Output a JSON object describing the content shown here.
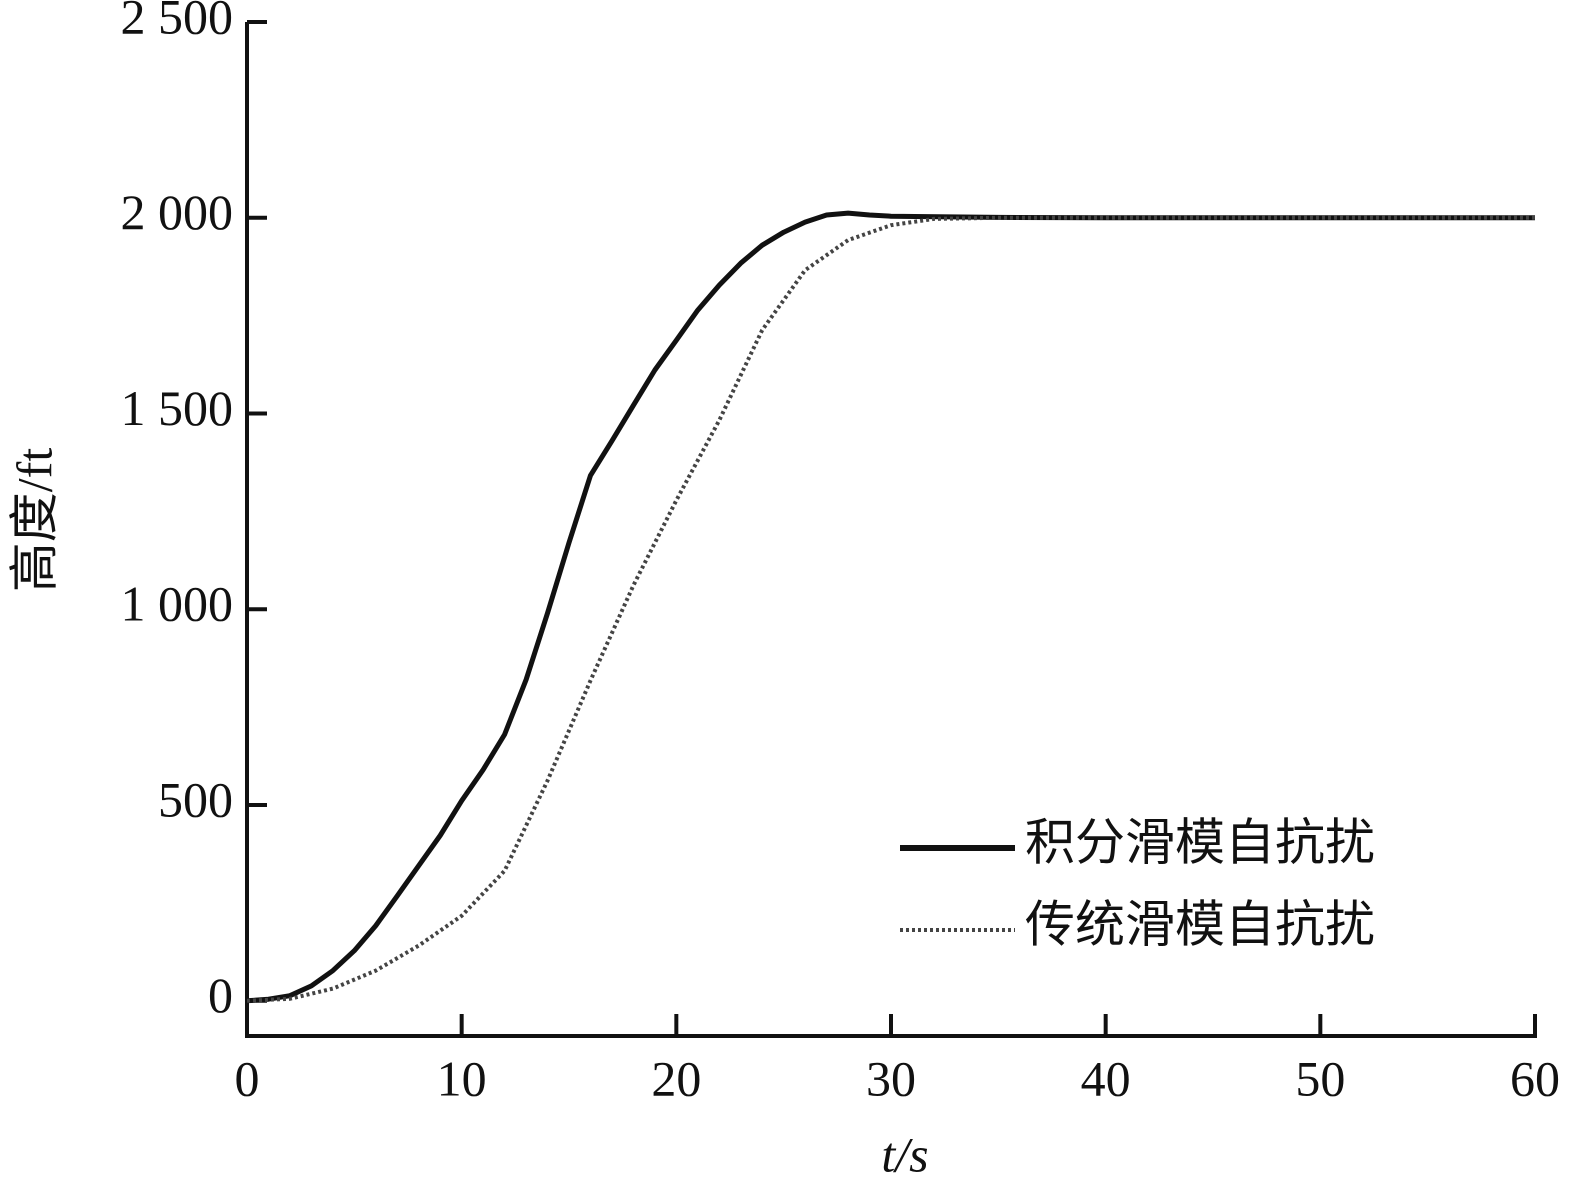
{
  "chart_data": {
    "type": "line",
    "xlabel": "t/s",
    "ylabel": "高度/ft",
    "xlim": [
      0,
      60
    ],
    "xticks": [
      0,
      10,
      20,
      30,
      40,
      50,
      60
    ],
    "ylim": [
      -90,
      2500
    ],
    "yticks": [
      0,
      500,
      {
        "value": 1000,
        "label": "1 000"
      },
      {
        "value": 1500,
        "label": "1 500"
      },
      {
        "value": 2000,
        "label": "2 000"
      },
      {
        "value": 2500,
        "label": "2 500"
      }
    ],
    "legend": "lower right",
    "series": [
      {
        "name": "积分滑模自抗扰",
        "color": "#111111",
        "style": "solid",
        "x": [
          0,
          1,
          2,
          3,
          4,
          5,
          6,
          7,
          8,
          9,
          10,
          11,
          12,
          13,
          14,
          15,
          16,
          17,
          18,
          19,
          20,
          21,
          22,
          23,
          24,
          25,
          26,
          27,
          28,
          29,
          30,
          35,
          40,
          50,
          60
        ],
        "values": [
          0,
          4,
          13,
          38,
          77,
          128,
          192,
          268,
          345,
          422,
          511,
          590,
          680,
          820,
          990,
          1170,
          1342,
          1430,
          1521,
          1611,
          1687,
          1764,
          1828,
          1884,
          1930,
          1963,
          1989,
          2007,
          2012,
          2007,
          2004,
          2001,
          2000,
          2000,
          2000
        ]
      },
      {
        "name": "传统滑模自抗扰",
        "color": "#444444",
        "style": "dotted",
        "x": [
          0,
          2,
          4,
          6,
          8,
          10,
          12,
          14,
          16,
          18,
          20,
          22,
          24,
          26,
          28,
          30,
          32,
          35,
          40,
          50,
          60
        ],
        "values": [
          0,
          5,
          31,
          77,
          141,
          217,
          332,
          562,
          818,
          1061,
          1278,
          1483,
          1713,
          1866,
          1943,
          1981,
          1997,
          2000,
          2000,
          2000,
          2000
        ]
      }
    ]
  }
}
